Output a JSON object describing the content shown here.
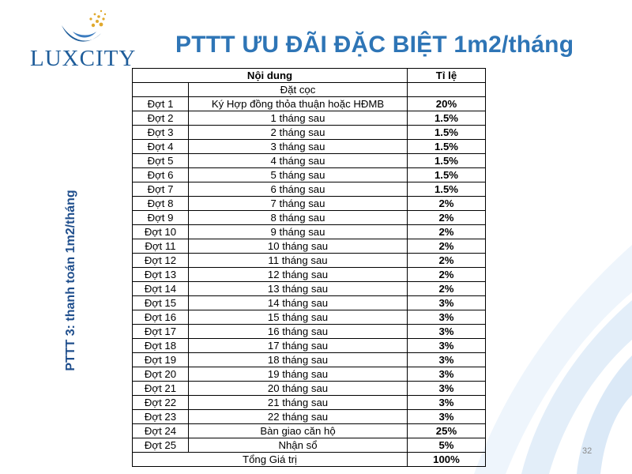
{
  "brand": {
    "name": "LUXCITY"
  },
  "title": "PTTT ƯU ĐÃI ĐẶC BIỆT 1m2/tháng",
  "side_label": "PTTT 3: thanh toán 1m2/tháng",
  "table": {
    "header": {
      "content": "Nội dung",
      "rate": "Tỉ lệ"
    },
    "deposit_label": "Đặt cọc",
    "rows": [
      {
        "phase": "Đợt 1",
        "content": "Ký Hợp đồng thỏa thuận hoặc HĐMB",
        "rate": "20%"
      },
      {
        "phase": "Đợt 2",
        "content": "1 tháng sau",
        "rate": "1.5%"
      },
      {
        "phase": "Đợt 3",
        "content": "2 tháng sau",
        "rate": "1.5%"
      },
      {
        "phase": "Đợt 4",
        "content": "3 tháng sau",
        "rate": "1.5%"
      },
      {
        "phase": "Đợt 5",
        "content": "4 tháng sau",
        "rate": "1.5%"
      },
      {
        "phase": "Đợt 6",
        "content": "5 tháng sau",
        "rate": "1.5%"
      },
      {
        "phase": "Đợt 7",
        "content": "6 tháng sau",
        "rate": "1.5%"
      },
      {
        "phase": "Đợt 8",
        "content": "7 tháng sau",
        "rate": "2%"
      },
      {
        "phase": "Đợt 9",
        "content": "8 tháng sau",
        "rate": "2%"
      },
      {
        "phase": "Đợt 10",
        "content": "9 tháng sau",
        "rate": "2%"
      },
      {
        "phase": "Đợt 11",
        "content": "10 tháng sau",
        "rate": "2%"
      },
      {
        "phase": "Đợt 12",
        "content": "11 tháng sau",
        "rate": "2%"
      },
      {
        "phase": "Đợt 13",
        "content": "12 tháng sau",
        "rate": "2%"
      },
      {
        "phase": "Đợt 14",
        "content": "13 tháng sau",
        "rate": "2%"
      },
      {
        "phase": "Đợt 15",
        "content": "14 tháng sau",
        "rate": "3%"
      },
      {
        "phase": "Đợt 16",
        "content": "15 tháng sau",
        "rate": "3%"
      },
      {
        "phase": "Đợt 17",
        "content": "16 tháng sau",
        "rate": "3%"
      },
      {
        "phase": "Đợt 18",
        "content": "17 tháng sau",
        "rate": "3%"
      },
      {
        "phase": "Đợt 19",
        "content": "18 tháng sau",
        "rate": "3%"
      },
      {
        "phase": "Đợt 20",
        "content": "19 tháng sau",
        "rate": "3%"
      },
      {
        "phase": "Đợt 21",
        "content": "20 tháng sau",
        "rate": "3%"
      },
      {
        "phase": "Đợt 22",
        "content": "21 tháng sau",
        "rate": "3%"
      },
      {
        "phase": "Đợt 23",
        "content": "22 tháng sau",
        "rate": "3%"
      },
      {
        "phase": "Đợt 24",
        "content": "Bàn giao căn hộ",
        "rate": "25%"
      },
      {
        "phase": "Đợt 25",
        "content": "Nhận sổ",
        "rate": "5%"
      }
    ],
    "total": {
      "label": "Tổng Giá trị",
      "rate": "100%"
    }
  },
  "page_number": "32",
  "colors": {
    "title": "#2e75b6",
    "side_label": "#1f4e8c",
    "brand": "#1f5d9a",
    "accent_gold": "#e0a92e",
    "swirl": "#dbe9f7"
  }
}
